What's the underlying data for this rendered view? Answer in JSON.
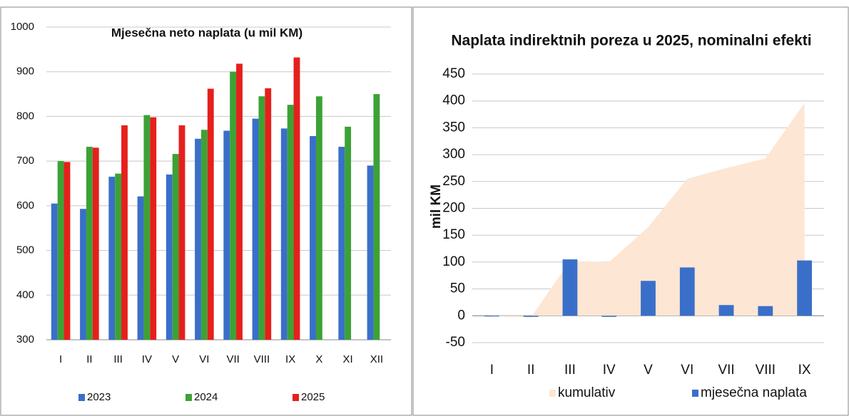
{
  "chart_data": [
    {
      "type": "bar",
      "title": "Mjesečna neto naplata (u mil KM)",
      "categories": [
        "I",
        "II",
        "III",
        "IV",
        "V",
        "VI",
        "VII",
        "VIII",
        "IX",
        "X",
        "XI",
        "XII"
      ],
      "series": [
        {
          "name": "2023",
          "color": "#3a6fc9",
          "values": [
            605,
            593,
            665,
            621,
            670,
            750,
            768,
            795,
            773,
            756,
            732,
            690
          ]
        },
        {
          "name": "2024",
          "color": "#3ca236",
          "values": [
            700,
            732,
            672,
            803,
            716,
            770,
            900,
            845,
            826,
            845,
            777,
            850
          ]
        },
        {
          "name": "2025",
          "color": "#e5201c",
          "values": [
            698,
            730,
            780,
            798,
            780,
            862,
            918,
            863,
            932,
            null,
            null,
            null
          ]
        }
      ],
      "ylim": [
        300,
        1000
      ],
      "yticks": [
        300,
        400,
        500,
        600,
        700,
        800,
        900,
        1000
      ],
      "grid": true,
      "legend": "bottom"
    },
    {
      "type": "bar",
      "title": "Naplata indirektnih poreza u 2025, nominalni efekti",
      "y_label": "mil KM",
      "categories": [
        "I",
        "II",
        "III",
        "IV",
        "V",
        "VI",
        "VII",
        "VIII",
        "IX"
      ],
      "series": [
        {
          "name": "kumulativ",
          "type": "area",
          "color": "#fde6d3",
          "values": [
            -1,
            -3,
            102,
            100,
            165,
            255,
            275,
            293,
            396
          ]
        },
        {
          "name": "mjesečna naplata",
          "type": "bar",
          "color": "#3a6fc9",
          "values": [
            -1,
            -2,
            105,
            -2,
            65,
            90,
            20,
            18,
            103
          ]
        }
      ],
      "ylim": [
        -50,
        450
      ],
      "yticks": [
        -50,
        0,
        50,
        100,
        150,
        200,
        250,
        300,
        350,
        400,
        450
      ],
      "grid": true,
      "legend": "bottom"
    }
  ]
}
